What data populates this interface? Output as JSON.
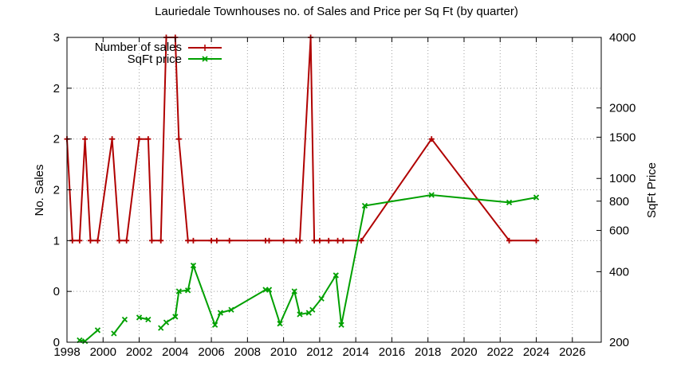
{
  "chart_data": {
    "type": "line",
    "title": "Lauriedale Townhouses no. of Sales and Price per Sq Ft (by quarter)",
    "ylabel": "No. Sales",
    "y2label": "SqFt Price",
    "xlim": [
      1998,
      2027.6
    ],
    "ylim": [
      0,
      3
    ],
    "y2lim": [
      200,
      4000
    ],
    "y2scale": "log",
    "xticks": [
      1998,
      2000,
      2002,
      2004,
      2006,
      2008,
      2010,
      2012,
      2014,
      2016,
      2018,
      2020,
      2022,
      2024,
      2026
    ],
    "yticks": [
      0,
      0.5,
      1,
      1.5,
      2,
      2.5,
      3
    ],
    "yticklabels": [
      "0",
      "0",
      "1",
      "2",
      "2",
      "2",
      "3"
    ],
    "y2ticks": [
      200,
      400,
      600,
      800,
      1000,
      1500,
      2000,
      4000
    ],
    "grid": true,
    "legend_position": "top-left",
    "series": [
      {
        "name": "Number of sales",
        "axis": "y",
        "color": "#b00000",
        "marker": "plus",
        "x": [
          1998.0,
          1998.3,
          1998.7,
          1999.0,
          1999.3,
          1999.7,
          2000.5,
          2000.9,
          2001.3,
          2002.0,
          2002.5,
          2002.7,
          2003.2,
          2003.5,
          2004.0,
          2004.2,
          2004.7,
          2005.0,
          2006.0,
          2006.3,
          2007.0,
          2009.0,
          2009.2,
          2010.0,
          2010.7,
          2010.9,
          2011.5,
          2011.7,
          2012.0,
          2012.5,
          2013.0,
          2013.3,
          2014.3,
          2018.2,
          2022.5,
          2024.0
        ],
        "values": [
          2.0,
          1.0,
          1.0,
          2.0,
          1.0,
          1.0,
          2.0,
          1.0,
          1.0,
          2.0,
          2.0,
          1.0,
          1.0,
          3.0,
          3.0,
          2.0,
          1.0,
          1.0,
          1.0,
          1.0,
          1.0,
          1.0,
          1.0,
          1.0,
          1.0,
          1.0,
          3.0,
          1.0,
          1.0,
          1.0,
          1.0,
          1.0,
          1.0,
          2.0,
          1.0,
          1.0
        ]
      },
      {
        "name": "SqFt price",
        "axis": "y2",
        "color": "#00a000",
        "marker": "x",
        "x": [
          1998.7,
          1999.0,
          1999.7,
          null,
          2000.6,
          2001.2,
          null,
          2002.0,
          2002.5,
          null,
          2003.2,
          2003.5,
          2004.0,
          2004.2,
          2004.7,
          2005.0,
          2006.2,
          2006.5,
          2007.1,
          2009.0,
          2009.2,
          2009.8,
          2010.6,
          2010.9,
          2011.4,
          2011.6,
          2012.1,
          2012.9,
          2013.2,
          2014.5,
          2018.2,
          2022.5,
          2024.0
        ],
        "values": [
          204,
          202,
          225,
          null,
          218,
          250,
          null,
          255,
          250,
          null,
          230,
          243,
          257,
          330,
          333,
          425,
          237,
          267,
          275,
          335,
          335,
          240,
          330,
          263,
          267,
          275,
          307,
          386,
          237,
          765,
          850,
          790,
          830
        ]
      }
    ]
  }
}
